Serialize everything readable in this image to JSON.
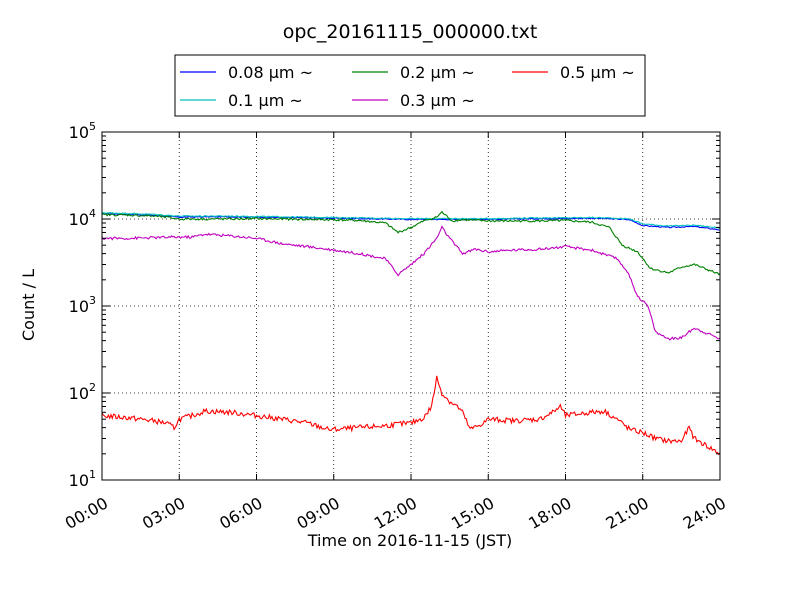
{
  "chart_data": {
    "type": "line",
    "title": "opc_20161115_000000.txt",
    "xlabel": "Time on 2016-11-15 (JST)",
    "ylabel": "Count / L",
    "y_scale": "log",
    "ylim": [
      10,
      100000
    ],
    "xlim": [
      "00:00",
      "24:00"
    ],
    "x_ticks": [
      "00:00",
      "03:00",
      "06:00",
      "09:00",
      "12:00",
      "15:00",
      "18:00",
      "21:00",
      "24:00"
    ],
    "y_ticks": [
      {
        "base": "10",
        "exp": "1",
        "value": 10
      },
      {
        "base": "10",
        "exp": "2",
        "value": 100
      },
      {
        "base": "10",
        "exp": "3",
        "value": 1000
      },
      {
        "base": "10",
        "exp": "4",
        "value": 10000
      },
      {
        "base": "10",
        "exp": "5",
        "value": 100000
      }
    ],
    "grid": true,
    "legend_position": "top-center",
    "series": [
      {
        "name": "0.08 μm ~",
        "color": "#0000ff",
        "x": [
          0.0,
          1.0,
          2.0,
          3.0,
          4.0,
          5.0,
          6.0,
          7.0,
          8.0,
          9.0,
          10.0,
          11.0,
          12.0,
          13.0,
          14.0,
          15.0,
          16.0,
          17.0,
          18.0,
          19.0,
          20.0,
          20.5,
          21.0,
          22.0,
          23.0,
          24.0
        ],
        "values": [
          11500,
          11300,
          11000,
          10500,
          10600,
          10600,
          10500,
          10400,
          10300,
          10200,
          10100,
          10000,
          9900,
          9900,
          9900,
          9900,
          10000,
          10100,
          10100,
          10200,
          10000,
          9800,
          8400,
          8000,
          8200,
          7500
        ]
      },
      {
        "name": "0.1 μm ~",
        "color": "#00bfbf",
        "x": [
          0.0,
          1.0,
          2.0,
          3.0,
          4.0,
          5.0,
          6.0,
          7.0,
          8.0,
          9.0,
          10.0,
          11.0,
          12.0,
          13.0,
          14.0,
          15.0,
          16.0,
          17.0,
          18.0,
          19.0,
          20.0,
          20.5,
          21.0,
          22.0,
          23.0,
          24.0
        ],
        "values": [
          11800,
          11600,
          11300,
          10800,
          10800,
          10800,
          10700,
          10600,
          10500,
          10400,
          10300,
          10200,
          10100,
          10100,
          10100,
          10100,
          10200,
          10300,
          10300,
          10400,
          10200,
          10000,
          8800,
          8300,
          8500,
          7900
        ]
      },
      {
        "name": "0.2 μm ~",
        "color": "#008000",
        "x": [
          0.0,
          1.0,
          2.0,
          2.5,
          3.0,
          4.0,
          5.0,
          6.0,
          7.0,
          8.0,
          9.0,
          10.0,
          11.0,
          11.5,
          12.0,
          12.5,
          13.0,
          13.2,
          13.6,
          14.0,
          15.0,
          16.0,
          17.0,
          18.0,
          19.0,
          19.7,
          20.2,
          20.8,
          21.3,
          22.0,
          22.5,
          23.0,
          24.0
        ],
        "values": [
          11200,
          11100,
          10800,
          10500,
          10000,
          10000,
          10000,
          10100,
          10000,
          9900,
          9800,
          9600,
          9000,
          7000,
          8000,
          9500,
          10500,
          12000,
          9500,
          9800,
          9500,
          9500,
          9500,
          9600,
          9200,
          8000,
          5000,
          4200,
          2700,
          2400,
          2800,
          3000,
          2300
        ]
      },
      {
        "name": "0.3 μm ~",
        "color": "#bf00bf",
        "x": [
          0.0,
          1.0,
          2.0,
          3.0,
          3.5,
          4.0,
          5.0,
          6.0,
          7.0,
          8.0,
          9.0,
          10.0,
          11.0,
          11.5,
          12.0,
          12.5,
          13.0,
          13.2,
          13.5,
          14.0,
          14.5,
          15.0,
          16.0,
          17.0,
          18.0,
          19.0,
          20.0,
          20.4,
          20.8,
          21.2,
          21.5,
          22.0,
          22.5,
          23.0,
          24.0
        ],
        "values": [
          6000,
          6000,
          6100,
          6200,
          6200,
          6700,
          6400,
          6000,
          5200,
          4800,
          4400,
          4000,
          3500,
          2300,
          3000,
          4000,
          6000,
          8000,
          6000,
          4000,
          4500,
          4200,
          4400,
          4500,
          4800,
          4400,
          3500,
          2500,
          1300,
          1000,
          500,
          420,
          430,
          560,
          420
        ]
      },
      {
        "name": "0.5 μm ~",
        "color": "#ff0000",
        "x": [
          0.0,
          1.0,
          2.0,
          2.5,
          2.8,
          3.0,
          3.5,
          4.0,
          5.0,
          6.0,
          7.0,
          8.0,
          8.8,
          9.0,
          10.0,
          11.0,
          11.5,
          12.0,
          12.5,
          12.8,
          13.0,
          13.2,
          13.5,
          13.8,
          14.0,
          14.3,
          14.8,
          15.0,
          16.0,
          17.0,
          17.5,
          17.8,
          18.0,
          19.0,
          19.5,
          20.0,
          20.5,
          21.0,
          21.5,
          22.0,
          22.5,
          22.8,
          23.0,
          24.0
        ],
        "values": [
          55,
          52,
          48,
          45,
          40,
          50,
          55,
          62,
          60,
          55,
          50,
          45,
          38,
          38,
          40,
          42,
          44,
          45,
          52,
          70,
          150,
          100,
          80,
          70,
          60,
          38,
          45,
          50,
          48,
          50,
          60,
          70,
          55,
          60,
          62,
          50,
          38,
          35,
          30,
          28,
          28,
          40,
          30,
          20
        ]
      }
    ]
  }
}
